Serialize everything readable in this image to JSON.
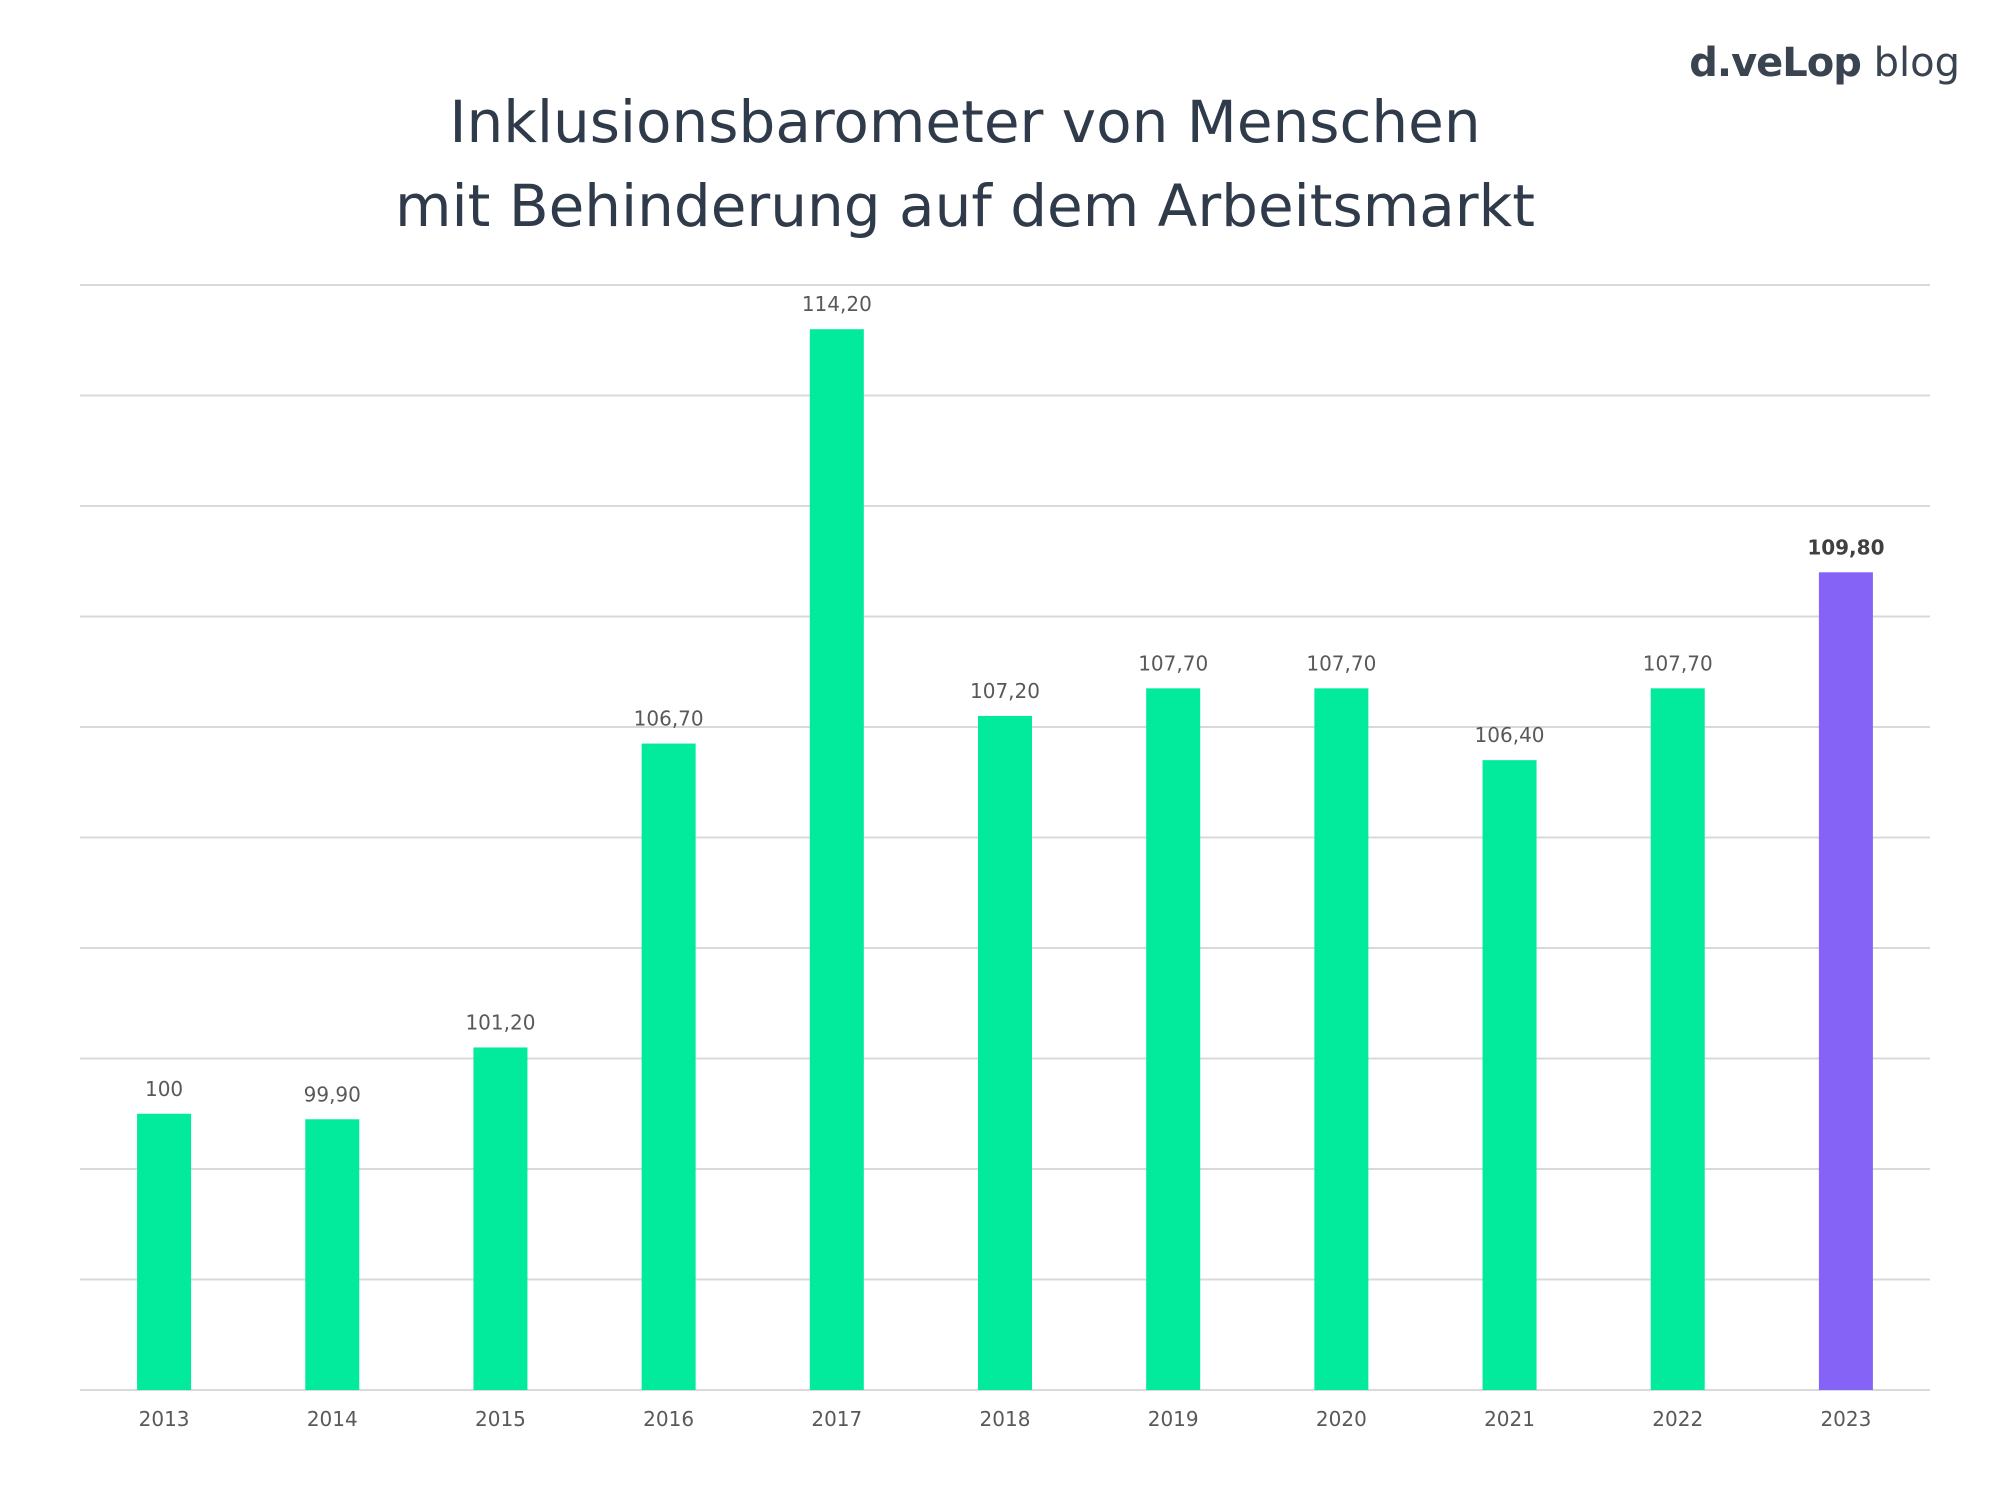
{
  "brand": {
    "name": "d.veLop",
    "suffix": "blog"
  },
  "colors": {
    "bar": "#02eb9c",
    "highlight": "#8563f7",
    "gridline": "#d9d9d9",
    "label": "#595959",
    "title": "#2f3b4a"
  },
  "chart_data": {
    "type": "bar",
    "title_lines": [
      "Inklusionsbarometer von Menschen",
      "mit Behinderung auf dem Arbeitsmarkt"
    ],
    "categories": [
      "2013",
      "2014",
      "2015",
      "2016",
      "2017",
      "2018",
      "2019",
      "2020",
      "2021",
      "2022",
      "2023"
    ],
    "values": [
      100,
      99.9,
      101.2,
      106.7,
      114.2,
      107.2,
      107.7,
      107.7,
      106.4,
      107.7,
      109.8
    ],
    "value_labels": [
      "100",
      "99,90",
      "101,20",
      "106,70",
      "114,20",
      "107,20",
      "107,70",
      "107,70",
      "106,40",
      "107,70",
      "109,80"
    ],
    "highlight_category": "2023",
    "ylim": [
      95,
      115
    ],
    "gridline_step": 2,
    "grid": true,
    "legend": "none",
    "xlabel": "",
    "ylabel": ""
  }
}
